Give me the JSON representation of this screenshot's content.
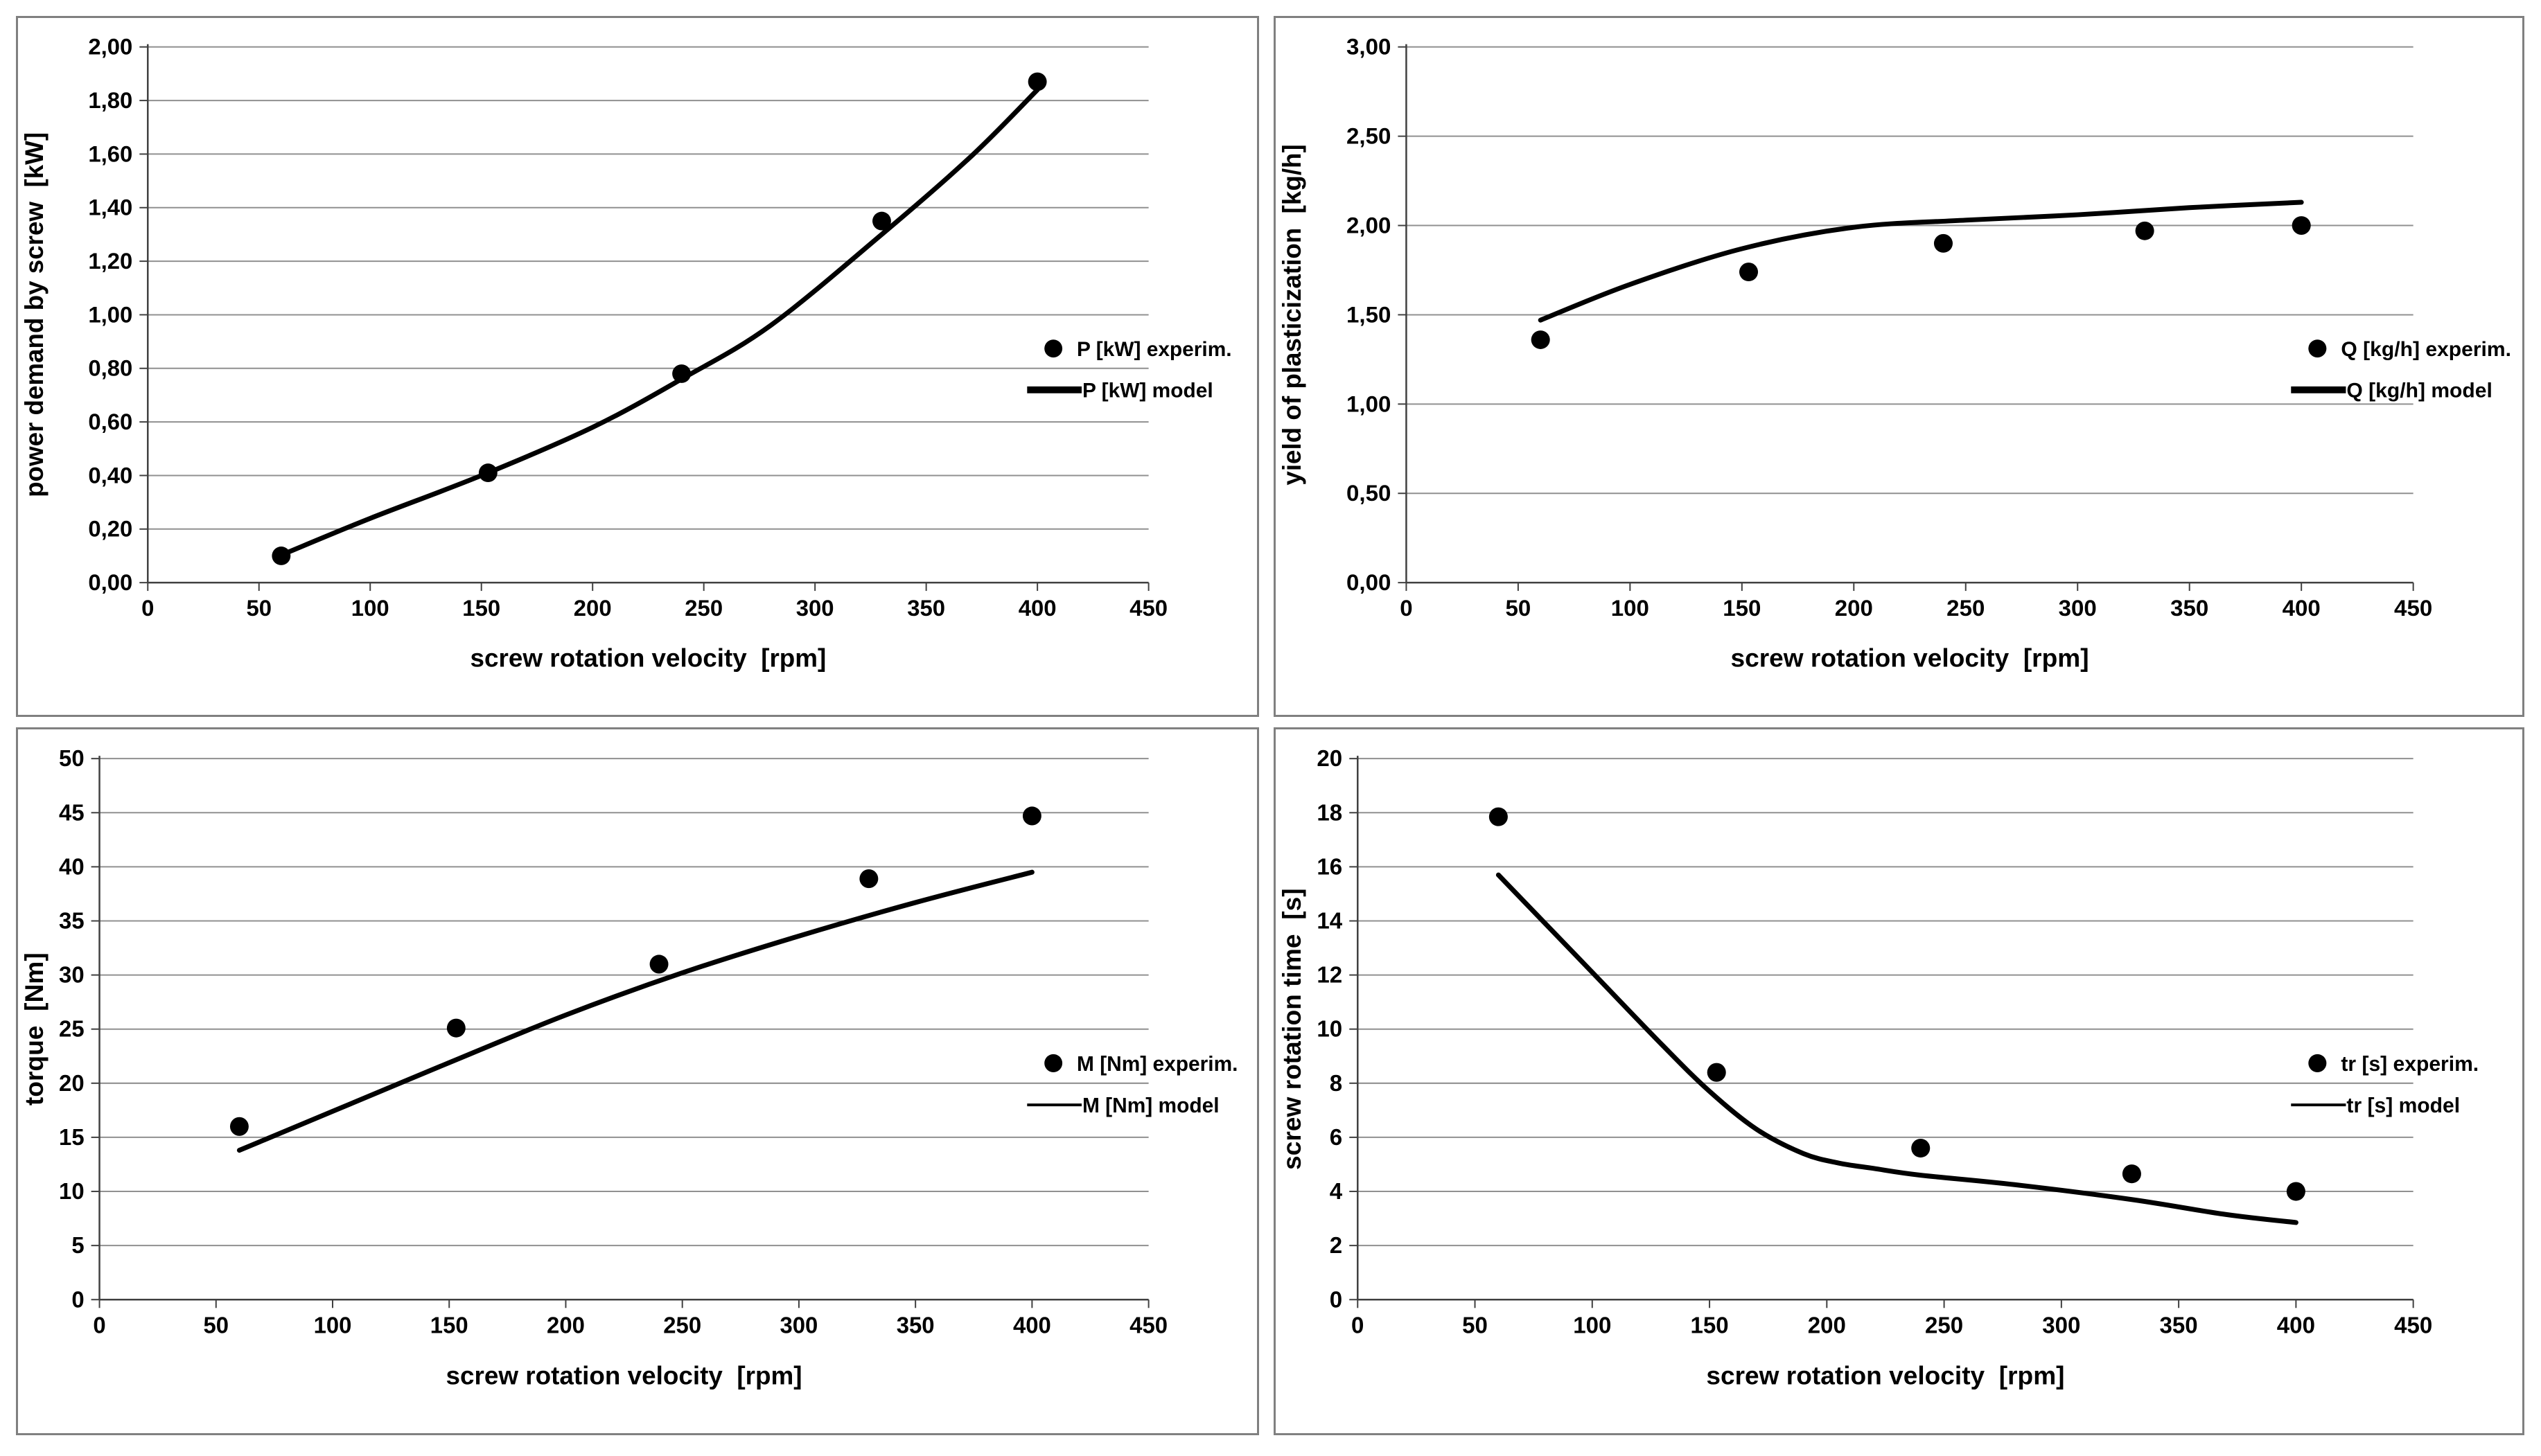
{
  "page": {
    "background": "#ffffff",
    "panel_border_color": "#808080",
    "grid_color": "#909090",
    "axis_color": "#404040",
    "series_color": "#000000",
    "text_color": "#000000"
  },
  "chart_data": [
    {
      "id": "power-demand",
      "type": "scatter",
      "xlabel": "screw rotation velocity  [rpm]",
      "ylabel": "power demand by screw  [kW]",
      "xlim": [
        0,
        450
      ],
      "ylim": [
        0,
        2.0
      ],
      "x_tick_values": [
        0,
        50,
        100,
        150,
        200,
        250,
        300,
        350,
        400,
        450
      ],
      "x_tick_labels": [
        "0",
        "50",
        "100",
        "150",
        "200",
        "250",
        "300",
        "350",
        "400",
        "450"
      ],
      "y_tick_values": [
        0,
        0.2,
        0.4,
        0.6,
        0.8,
        1.0,
        1.2,
        1.4,
        1.6,
        1.8,
        2.0
      ],
      "y_tick_labels": [
        "0,00",
        "0,20",
        "0,40",
        "0,60",
        "0,80",
        "1,00",
        "1,20",
        "1,40",
        "1,60",
        "1,80",
        "2,00"
      ],
      "grid": "horizontal",
      "legend_position": "right",
      "legend_line_weight": "thick",
      "series": [
        {
          "name": "P [kW] experim.",
          "kind": "points",
          "points": [
            [
              60,
              0.1
            ],
            [
              153,
              0.41
            ],
            [
              240,
              0.78
            ],
            [
              330,
              1.35
            ],
            [
              400,
              1.87
            ]
          ]
        },
        {
          "name": "P [kW] model",
          "kind": "line",
          "points": [
            [
              62,
              0.11
            ],
            [
              100,
              0.24
            ],
            [
              150,
              0.4
            ],
            [
              200,
              0.58
            ],
            [
              240,
              0.76
            ],
            [
              280,
              0.96
            ],
            [
              330,
              1.3
            ],
            [
              370,
              1.59
            ],
            [
              400,
              1.84
            ]
          ]
        }
      ]
    },
    {
      "id": "yield-plasticization",
      "type": "scatter",
      "xlabel": "screw rotation velocity  [rpm]",
      "ylabel": "yield of plasticization  [kg/h]",
      "xlim": [
        0,
        450
      ],
      "ylim": [
        0,
        3.0
      ],
      "x_tick_values": [
        0,
        50,
        100,
        150,
        200,
        250,
        300,
        350,
        400,
        450
      ],
      "x_tick_labels": [
        "0",
        "50",
        "100",
        "150",
        "200",
        "250",
        "300",
        "350",
        "400",
        "450"
      ],
      "y_tick_values": [
        0,
        0.5,
        1.0,
        1.5,
        2.0,
        2.5,
        3.0
      ],
      "y_tick_labels": [
        "0,00",
        "0,50",
        "1,00",
        "1,50",
        "2,00",
        "2,50",
        "3,00"
      ],
      "grid": "horizontal",
      "legend_position": "right",
      "legend_line_weight": "thick",
      "series": [
        {
          "name": "Q [kg/h] experim.",
          "kind": "points",
          "points": [
            [
              60,
              1.36
            ],
            [
              153,
              1.74
            ],
            [
              240,
              1.9
            ],
            [
              330,
              1.97
            ],
            [
              400,
              2.0
            ]
          ]
        },
        {
          "name": "Q [kg/h] model",
          "kind": "line",
          "points": [
            [
              60,
              1.47
            ],
            [
              100,
              1.67
            ],
            [
              150,
              1.87
            ],
            [
              200,
              1.99
            ],
            [
              250,
              2.03
            ],
            [
              300,
              2.06
            ],
            [
              350,
              2.1
            ],
            [
              400,
              2.13
            ]
          ]
        }
      ]
    },
    {
      "id": "torque",
      "type": "scatter",
      "xlabel": "screw rotation velocity  [rpm]",
      "ylabel": "torque  [Nm]",
      "xlim": [
        0,
        450
      ],
      "ylim": [
        0,
        50
      ],
      "x_tick_values": [
        0,
        50,
        100,
        150,
        200,
        250,
        300,
        350,
        400,
        450
      ],
      "x_tick_labels": [
        "0",
        "50",
        "100",
        "150",
        "200",
        "250",
        "300",
        "350",
        "400",
        "450"
      ],
      "y_tick_values": [
        0,
        5,
        10,
        15,
        20,
        25,
        30,
        35,
        40,
        45,
        50
      ],
      "y_tick_labels": [
        "0",
        "5",
        "10",
        "15",
        "20",
        "25",
        "30",
        "35",
        "40",
        "45",
        "50"
      ],
      "grid": "horizontal",
      "legend_position": "right",
      "legend_line_weight": "thin",
      "series": [
        {
          "name": "M [Nm] experim.",
          "kind": "points",
          "points": [
            [
              60,
              16.0
            ],
            [
              153,
              25.1
            ],
            [
              240,
              31.0
            ],
            [
              330,
              38.9
            ],
            [
              400,
              44.7
            ]
          ]
        },
        {
          "name": "M [Nm] model",
          "kind": "line",
          "points": [
            [
              60,
              13.8
            ],
            [
              100,
              17.4
            ],
            [
              150,
              21.9
            ],
            [
              200,
              26.3
            ],
            [
              250,
              30.2
            ],
            [
              300,
              33.6
            ],
            [
              350,
              36.7
            ],
            [
              400,
              39.5
            ]
          ]
        }
      ]
    },
    {
      "id": "rotation-time",
      "type": "scatter",
      "xlabel": "screw rotation velocity  [rpm]",
      "ylabel": "screw rotation time  [s]",
      "xlim": [
        0,
        450
      ],
      "ylim": [
        0,
        20
      ],
      "x_tick_values": [
        0,
        50,
        100,
        150,
        200,
        250,
        300,
        350,
        400,
        450
      ],
      "x_tick_labels": [
        "0",
        "50",
        "100",
        "150",
        "200",
        "250",
        "300",
        "350",
        "400",
        "450"
      ],
      "y_tick_values": [
        0,
        2,
        4,
        6,
        8,
        10,
        12,
        14,
        16,
        18,
        20
      ],
      "y_tick_labels": [
        "0",
        "2",
        "4",
        "6",
        "8",
        "10",
        "12",
        "14",
        "16",
        "18",
        "20"
      ],
      "grid": "horizontal",
      "legend_position": "right",
      "legend_line_weight": "thin",
      "series": [
        {
          "name": "tr [s] experim.",
          "kind": "points",
          "points": [
            [
              60,
              17.85
            ],
            [
              153,
              8.4
            ],
            [
              240,
              5.6
            ],
            [
              330,
              4.65
            ],
            [
              400,
              4.0
            ]
          ]
        },
        {
          "name": "tr [s] model",
          "kind": "line",
          "points": [
            [
              60,
              15.7
            ],
            [
              100,
              12.1
            ],
            [
              130,
              9.4
            ],
            [
              150,
              7.7
            ],
            [
              170,
              6.3
            ],
            [
              190,
              5.4
            ],
            [
              205,
              5.05
            ],
            [
              220,
              4.85
            ],
            [
              240,
              4.6
            ],
            [
              280,
              4.25
            ],
            [
              330,
              3.7
            ],
            [
              370,
              3.15
            ],
            [
              400,
              2.85
            ]
          ]
        }
      ]
    }
  ]
}
